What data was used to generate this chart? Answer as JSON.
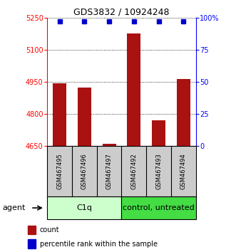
{
  "title": "GDS3832 / 10924248",
  "samples": [
    "GSM467495",
    "GSM467496",
    "GSM467497",
    "GSM467492",
    "GSM467493",
    "GSM467494"
  ],
  "counts": [
    4945,
    4925,
    4660,
    5175,
    4770,
    4965
  ],
  "percentiles": [
    97,
    97,
    97,
    97,
    97,
    97
  ],
  "ylim_left": [
    4650,
    5250
  ],
  "yticks_left": [
    4650,
    4800,
    4950,
    5100,
    5250
  ],
  "ylim_right": [
    0,
    100
  ],
  "yticks_right": [
    0,
    25,
    50,
    75,
    100
  ],
  "bar_color": "#aa1111",
  "percentile_color": "#0000cc",
  "group1_label": "C1q",
  "group1_indices": [
    0,
    1,
    2
  ],
  "group2_label": "control, untreated",
  "group2_indices": [
    3,
    4,
    5
  ],
  "group1_color": "#ccffcc",
  "group2_color": "#44dd44",
  "agent_label": "agent",
  "legend_count_label": "count",
  "legend_percentile_label": "percentile rank within the sample",
  "bar_width": 0.55,
  "baseline": 4650,
  "fig_width": 3.31,
  "fig_height": 3.54
}
